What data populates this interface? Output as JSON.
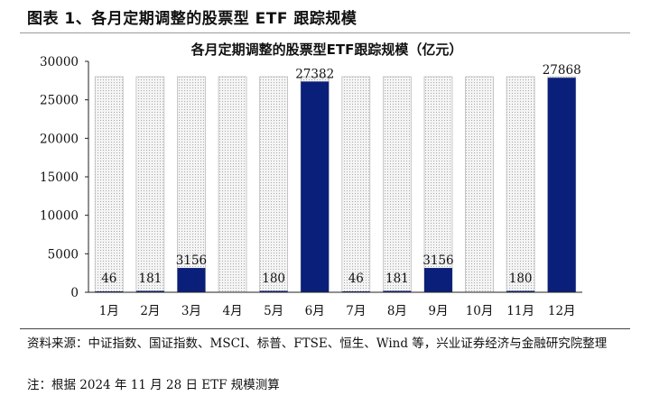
{
  "figure_title": "图表 1、各月定期调整的股票型 ETF 跟踪规模",
  "source": "资料来源：中证指数、国证指数、MSCI、标普、FTSE、恒生、Wind 等，兴业证券经济与金融研究院整理",
  "note": "注：根据 2024 年 11 月 28 日 ETF 规模测算",
  "colors": {
    "bar": "#0a1f7a",
    "capacity_bg": "#e6e6e6"
  },
  "chart_data": {
    "type": "bar",
    "title": "各月定期调整的股票型ETF跟踪规模（亿元）",
    "xlabel": "",
    "ylabel": "",
    "categories": [
      "1月",
      "2月",
      "3月",
      "4月",
      "5月",
      "6月",
      "7月",
      "8月",
      "9月",
      "10月",
      "11月",
      "12月"
    ],
    "values": [
      46,
      181,
      3156,
      null,
      180,
      27382,
      46,
      181,
      3156,
      null,
      180,
      27868
    ],
    "value_labels": [
      "46",
      "181",
      "3156",
      "",
      "180",
      "27382",
      "46",
      "181",
      "3156",
      "",
      "180",
      "27868"
    ],
    "ylim": [
      0,
      30000
    ],
    "yticks": [
      0,
      5000,
      10000,
      15000,
      20000,
      25000,
      30000
    ],
    "background_bar_value": 28000,
    "grid": false,
    "legend": "none"
  }
}
